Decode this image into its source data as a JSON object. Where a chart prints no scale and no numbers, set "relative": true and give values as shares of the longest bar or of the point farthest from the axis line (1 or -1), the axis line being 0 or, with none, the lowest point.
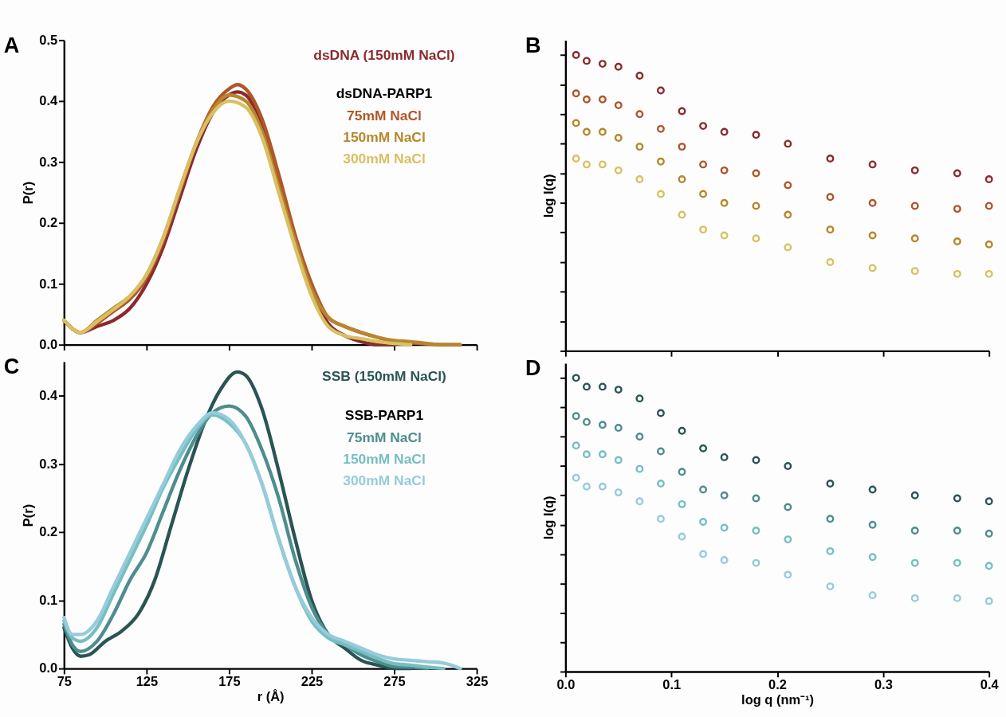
{
  "chart_data": [
    {
      "type": "line",
      "ylabel": "P(r)",
      "xlim": [
        75,
        325
      ],
      "xticks": [
        75,
        125,
        175,
        225,
        275,
        325
      ],
      "ylim": [
        0,
        0.5
      ],
      "yticks": [
        {
          "value": 0,
          "label": "0.0"
        },
        0.1,
        0.2,
        0.3,
        0.4,
        0.5
      ],
      "tick_labels": "y",
      "legend": "top right",
      "legend_title": "dsDNA-PARP1",
      "line_style": "solid",
      "annotations": [
        "A"
      ],
      "series": [
        {
          "name": "dsDNA (150mM NaCl)",
          "color": "#8b2a2e",
          "x": [
            75,
            85,
            95,
            105,
            115,
            125,
            135,
            145,
            155,
            165,
            175,
            180,
            185,
            195,
            205,
            215,
            225,
            235,
            245,
            255,
            265,
            275
          ],
          "values": [
            0.04,
            0.02,
            0.03,
            0.04,
            0.06,
            0.1,
            0.16,
            0.24,
            0.32,
            0.38,
            0.41,
            0.415,
            0.41,
            0.36,
            0.27,
            0.17,
            0.09,
            0.035,
            0.015,
            0.005,
            0.0,
            0.0
          ]
        },
        {
          "name": "75mM NaCl",
          "color": "#b0562a",
          "x": [
            75,
            85,
            95,
            105,
            115,
            125,
            135,
            145,
            155,
            165,
            175,
            180,
            185,
            195,
            205,
            215,
            225,
            235,
            245,
            255,
            265,
            275,
            285,
            295,
            305,
            315
          ],
          "values": [
            0.04,
            0.02,
            0.035,
            0.055,
            0.075,
            0.11,
            0.17,
            0.25,
            0.33,
            0.39,
            0.42,
            0.427,
            0.42,
            0.37,
            0.28,
            0.18,
            0.1,
            0.045,
            0.03,
            0.02,
            0.012,
            0.005,
            0.003,
            0.001,
            0.0,
            0.0
          ]
        },
        {
          "name": "150mM NaCl",
          "color": "#b8862c",
          "x": [
            75,
            85,
            95,
            105,
            115,
            125,
            135,
            145,
            155,
            165,
            175,
            185,
            195,
            205,
            215,
            225,
            235,
            245,
            255,
            265,
            275,
            285,
            295,
            305,
            315
          ],
          "values": [
            0.04,
            0.02,
            0.04,
            0.06,
            0.08,
            0.115,
            0.175,
            0.255,
            0.33,
            0.385,
            0.41,
            0.4,
            0.35,
            0.26,
            0.17,
            0.09,
            0.045,
            0.03,
            0.02,
            0.012,
            0.007,
            0.005,
            0.002,
            0.0,
            0.0
          ]
        },
        {
          "name": "300mM NaCl",
          "color": "#d8c063",
          "x": [
            75,
            85,
            95,
            105,
            115,
            125,
            135,
            145,
            155,
            165,
            175,
            185,
            195,
            205,
            215,
            225,
            235,
            245,
            255,
            265,
            275,
            285
          ],
          "values": [
            0.04,
            0.02,
            0.038,
            0.058,
            0.08,
            0.115,
            0.175,
            0.255,
            0.33,
            0.38,
            0.4,
            0.39,
            0.34,
            0.25,
            0.16,
            0.08,
            0.03,
            0.015,
            0.01,
            0.005,
            0.002,
            0.0
          ]
        }
      ]
    },
    {
      "type": "scatter",
      "ylabel": "log I(q)",
      "relative": true,
      "xlim": [
        0,
        0.4
      ],
      "xticks": [
        0,
        0.1,
        0.2,
        0.3,
        0.4
      ],
      "tick_labels": false,
      "marker": "circle",
      "annotations": [
        "B"
      ],
      "series": [
        {
          "color": "#8b2a2e",
          "x": [
            0.01,
            0.02,
            0.035,
            0.05,
            0.07,
            0.09,
            0.11,
            0.13,
            0.15,
            0.18,
            0.21,
            0.25,
            0.29,
            0.33,
            0.37,
            0.4
          ],
          "values": [
            1.0,
            0.98,
            0.97,
            0.96,
            0.93,
            0.88,
            0.81,
            0.76,
            0.74,
            0.73,
            0.7,
            0.65,
            0.63,
            0.61,
            0.6,
            0.58
          ]
        },
        {
          "color": "#b0562a",
          "x": [
            0.01,
            0.02,
            0.035,
            0.05,
            0.07,
            0.09,
            0.11,
            0.13,
            0.15,
            0.18,
            0.21,
            0.25,
            0.29,
            0.33,
            0.37,
            0.4
          ],
          "values": [
            0.87,
            0.85,
            0.85,
            0.83,
            0.8,
            0.75,
            0.69,
            0.63,
            0.61,
            0.6,
            0.56,
            0.52,
            0.5,
            0.49,
            0.48,
            0.49
          ]
        },
        {
          "color": "#b8862c",
          "x": [
            0.01,
            0.02,
            0.035,
            0.05,
            0.07,
            0.09,
            0.11,
            0.13,
            0.15,
            0.18,
            0.21,
            0.25,
            0.29,
            0.33,
            0.37,
            0.4
          ],
          "values": [
            0.77,
            0.74,
            0.74,
            0.72,
            0.69,
            0.64,
            0.58,
            0.53,
            0.5,
            0.49,
            0.46,
            0.41,
            0.39,
            0.38,
            0.37,
            0.36
          ]
        },
        {
          "color": "#d8c063",
          "x": [
            0.01,
            0.02,
            0.035,
            0.05,
            0.07,
            0.09,
            0.11,
            0.13,
            0.15,
            0.18,
            0.21,
            0.25,
            0.29,
            0.33,
            0.37,
            0.4
          ],
          "values": [
            0.65,
            0.63,
            0.63,
            0.61,
            0.58,
            0.53,
            0.46,
            0.41,
            0.39,
            0.38,
            0.35,
            0.3,
            0.28,
            0.27,
            0.26,
            0.26
          ]
        }
      ]
    },
    {
      "type": "line",
      "xlabel": "r (Å)",
      "ylabel": "P(r)",
      "xlim": [
        75,
        325
      ],
      "xticks": [
        75,
        125,
        175,
        225,
        275,
        325
      ],
      "ylim": [
        0,
        0.45
      ],
      "yticks": [
        {
          "value": 0,
          "label": "0.0"
        },
        0.1,
        0.2,
        0.3,
        0.4
      ],
      "legend": "top right",
      "legend_title": "SSB-PARP1",
      "line_style": "solid",
      "annotations": [
        "C"
      ],
      "series": [
        {
          "name": "SSB (150mM NaCl)",
          "color": "#2a5454",
          "x": [
            75,
            80,
            85,
            90,
            100,
            110,
            120,
            130,
            140,
            150,
            160,
            170,
            180,
            185,
            195,
            205,
            215,
            225,
            235,
            245,
            255,
            265,
            275,
            285
          ],
          "values": [
            0.06,
            0.03,
            0.018,
            0.02,
            0.04,
            0.055,
            0.08,
            0.13,
            0.21,
            0.29,
            0.36,
            0.41,
            0.435,
            0.43,
            0.38,
            0.29,
            0.19,
            0.1,
            0.05,
            0.03,
            0.012,
            0.005,
            0.0,
            0.0
          ]
        },
        {
          "name": "75mM NaCl",
          "color": "#4f8d8d",
          "x": [
            75,
            80,
            85,
            95,
            105,
            115,
            125,
            135,
            145,
            155,
            165,
            175,
            185,
            195,
            205,
            215,
            225,
            235,
            245,
            255,
            265,
            275,
            285,
            295
          ],
          "values": [
            0.065,
            0.035,
            0.025,
            0.04,
            0.08,
            0.13,
            0.17,
            0.23,
            0.29,
            0.34,
            0.375,
            0.385,
            0.37,
            0.32,
            0.25,
            0.16,
            0.09,
            0.05,
            0.035,
            0.02,
            0.01,
            0.003,
            0.002,
            0.0
          ]
        },
        {
          "name": "150mM NaCl",
          "color": "#75bfc0",
          "x": [
            75,
            80,
            85,
            95,
            105,
            115,
            125,
            135,
            145,
            155,
            165,
            175,
            185,
            195,
            205,
            215,
            225,
            235,
            245,
            255,
            265,
            275,
            285,
            295,
            305
          ],
          "values": [
            0.07,
            0.045,
            0.04,
            0.06,
            0.11,
            0.16,
            0.21,
            0.265,
            0.31,
            0.35,
            0.372,
            0.36,
            0.33,
            0.27,
            0.19,
            0.12,
            0.07,
            0.045,
            0.035,
            0.025,
            0.015,
            0.007,
            0.005,
            0.002,
            0.0
          ]
        },
        {
          "name": "300mM NaCl",
          "color": "#96cbdc",
          "x": [
            75,
            80,
            85,
            95,
            105,
            115,
            125,
            135,
            145,
            155,
            165,
            175,
            185,
            195,
            205,
            215,
            225,
            235,
            245,
            255,
            265,
            275,
            285,
            295,
            305,
            315
          ],
          "values": [
            0.075,
            0.05,
            0.05,
            0.07,
            0.12,
            0.17,
            0.22,
            0.27,
            0.32,
            0.355,
            0.375,
            0.365,
            0.33,
            0.27,
            0.19,
            0.12,
            0.075,
            0.05,
            0.04,
            0.03,
            0.02,
            0.014,
            0.012,
            0.01,
            0.008,
            0.0
          ]
        }
      ]
    },
    {
      "type": "scatter",
      "xlabel": "log q (nm⁻¹)",
      "ylabel": "log I(q)",
      "relative": true,
      "xlim": [
        0,
        0.4
      ],
      "xticks": [
        {
          "value": 0,
          "label": "0.0"
        },
        0.1,
        0.2,
        0.3,
        0.4
      ],
      "tick_labels": "x",
      "marker": "circle",
      "annotations": [
        "D"
      ],
      "series": [
        {
          "color": "#2a5454",
          "x": [
            0.01,
            0.02,
            0.035,
            0.05,
            0.07,
            0.09,
            0.11,
            0.13,
            0.15,
            0.18,
            0.21,
            0.25,
            0.29,
            0.33,
            0.37,
            0.4
          ],
          "values": [
            1.0,
            0.97,
            0.97,
            0.96,
            0.93,
            0.88,
            0.82,
            0.76,
            0.73,
            0.72,
            0.7,
            0.64,
            0.62,
            0.6,
            0.59,
            0.58
          ]
        },
        {
          "color": "#4f8d8d",
          "x": [
            0.01,
            0.02,
            0.035,
            0.05,
            0.07,
            0.09,
            0.11,
            0.13,
            0.15,
            0.18,
            0.21,
            0.25,
            0.29,
            0.33,
            0.37,
            0.4
          ],
          "values": [
            0.87,
            0.85,
            0.84,
            0.83,
            0.8,
            0.75,
            0.68,
            0.62,
            0.6,
            0.59,
            0.56,
            0.52,
            0.5,
            0.48,
            0.48,
            0.47
          ]
        },
        {
          "color": "#75bfc0",
          "x": [
            0.01,
            0.02,
            0.035,
            0.05,
            0.07,
            0.09,
            0.11,
            0.13,
            0.15,
            0.18,
            0.21,
            0.25,
            0.29,
            0.33,
            0.37,
            0.4
          ],
          "values": [
            0.77,
            0.74,
            0.74,
            0.72,
            0.69,
            0.64,
            0.57,
            0.51,
            0.49,
            0.48,
            0.45,
            0.41,
            0.39,
            0.37,
            0.37,
            0.36
          ]
        },
        {
          "color": "#96cbdc",
          "x": [
            0.01,
            0.02,
            0.035,
            0.05,
            0.07,
            0.09,
            0.11,
            0.13,
            0.15,
            0.18,
            0.21,
            0.25,
            0.29,
            0.33,
            0.37,
            0.4
          ],
          "values": [
            0.66,
            0.63,
            0.63,
            0.61,
            0.58,
            0.52,
            0.46,
            0.4,
            0.38,
            0.37,
            0.33,
            0.29,
            0.26,
            0.25,
            0.25,
            0.24
          ]
        }
      ]
    }
  ]
}
